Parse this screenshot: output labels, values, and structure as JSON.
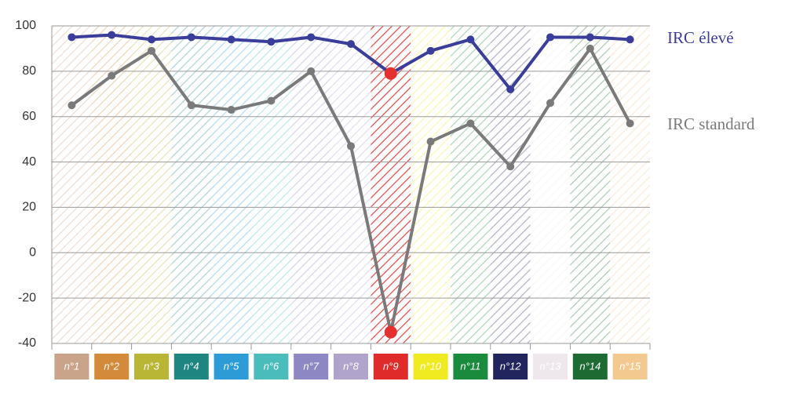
{
  "chart_data": {
    "type": "line",
    "categories": [
      "n°1",
      "n°2",
      "n°3",
      "n°4",
      "n°5",
      "n°6",
      "n°7",
      "n°8",
      "n°9",
      "n°10",
      "n°11",
      "n°12",
      "n°13",
      "n°14",
      "n°15"
    ],
    "category_colors": [
      "#c9a48a",
      "#d38a3a",
      "#b9b535",
      "#1f8580",
      "#2c9bd6",
      "#4bbcbc",
      "#8d87c4",
      "#b0a3cc",
      "#e02b2b",
      "#f0ea20",
      "#1a8a3c",
      "#22245e",
      "#eee8ec",
      "#1d6b32",
      "#f3c98f"
    ],
    "series": [
      {
        "name": "IRC élevé",
        "color": "#3a3d9a",
        "values": [
          95,
          96,
          94,
          95,
          94,
          93,
          95,
          92,
          79,
          89,
          94,
          72,
          95,
          95,
          94
        ]
      },
      {
        "name": "IRC standard",
        "color": "#7a7a7a",
        "values": [
          65,
          78,
          89,
          65,
          63,
          67,
          80,
          47,
          -35,
          49,
          57,
          38,
          66,
          90,
          57
        ]
      }
    ],
    "highlight_index": 8,
    "highlight_color": "#e53030",
    "ylim": [
      -40,
      100
    ],
    "yticks": [
      -40,
      -20,
      0,
      20,
      40,
      60,
      80,
      100
    ],
    "grid": true
  }
}
